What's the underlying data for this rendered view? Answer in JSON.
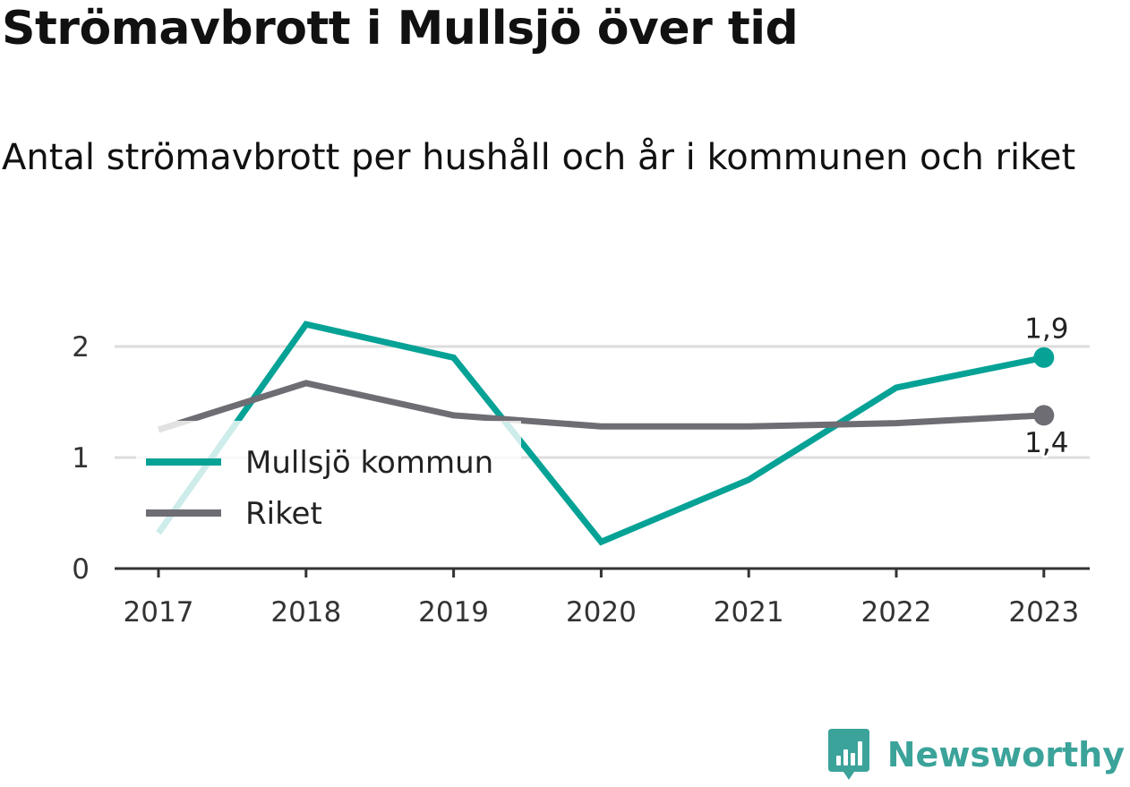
{
  "header": {
    "title": "Strömavbrott i Mullsjö över tid",
    "subtitle": "Antal strömavbrott per hushåll och år i kommunen och riket"
  },
  "brand": {
    "name": "Newsworthy",
    "icon": "newsworthy-logo-icon",
    "color": "#3ba39a"
  },
  "chart_data": {
    "type": "line",
    "title": "Strömavbrott i Mullsjö över tid",
    "subtitle": "Antal strömavbrott per hushåll och år i kommunen och riket",
    "xlabel": "",
    "ylabel": "",
    "categories": [
      "2017",
      "2018",
      "2019",
      "2020",
      "2021",
      "2022",
      "2023"
    ],
    "ylim": [
      0,
      2.4
    ],
    "yticks": [
      0,
      1,
      2
    ],
    "grid": true,
    "legend_placement": "left",
    "series": [
      {
        "name": "Mullsjö kommun",
        "color": "#06a296",
        "values": [
          0.32,
          2.2,
          1.9,
          0.24,
          0.8,
          1.63,
          1.9
        ],
        "end_label": "1,9"
      },
      {
        "name": "Riket",
        "color": "#6e6d74",
        "values": [
          1.25,
          1.67,
          1.38,
          1.28,
          1.28,
          1.31,
          1.38
        ],
        "end_label": "1,4"
      }
    ]
  }
}
